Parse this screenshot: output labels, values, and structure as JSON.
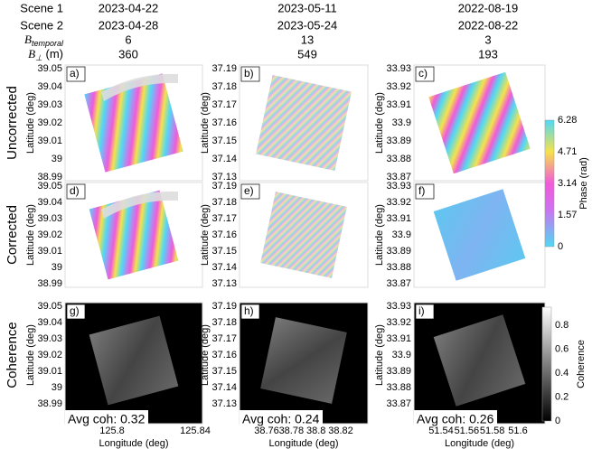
{
  "header": {
    "rows": [
      {
        "label": "Scene 1",
        "values": [
          "2023-04-22",
          "2023-05-11",
          "2022-08-19"
        ]
      },
      {
        "label": "Scene 2",
        "values": [
          "2023-04-28",
          "2023-05-24",
          "2022-08-22"
        ]
      },
      {
        "label": "B",
        "sub": "temporal",
        "values": [
          6,
          13,
          3
        ]
      },
      {
        "label": "B",
        "sub": "⊥",
        "suffix": " (m)",
        "values": [
          360,
          549,
          193
        ]
      }
    ]
  },
  "row_labels": [
    "Uncorrected",
    "Corrected",
    "Coherence"
  ],
  "y_label": "Latitude (deg)",
  "x_label": "Longitude (deg)",
  "columns": [
    {
      "yticks": [
        39.05,
        39.04,
        39.03,
        39.02,
        39.01,
        39,
        38.99
      ],
      "xticks": [
        125.8,
        125.84
      ],
      "panels": [
        "a)",
        "d)",
        "g)"
      ],
      "avg_coh": "Avg coh: 0.32"
    },
    {
      "yticks": [
        37.19,
        37.18,
        37.17,
        37.16,
        37.15,
        37.14,
        37.13
      ],
      "xticks": [
        38.76,
        38.78,
        38.8,
        38.82
      ],
      "panels": [
        "b)",
        "e)",
        "h)"
      ],
      "avg_coh": "Avg coh: 0.24"
    },
    {
      "yticks": [
        33.93,
        33.92,
        33.91,
        33.9,
        33.89,
        33.88,
        33.87
      ],
      "xticks": [
        51.54,
        51.56,
        51.58,
        51.6
      ],
      "panels": [
        "c)",
        "f)",
        "i)"
      ],
      "avg_coh": "Avg coh: 0.26"
    }
  ],
  "phase_colorbar": {
    "label": "Phase (rad)",
    "range": [
      0,
      6.28
    ],
    "ticks": [
      0,
      1.57,
      3.14,
      4.71,
      6.28
    ]
  },
  "coherence_colorbar": {
    "label": "Coherence",
    "range": [
      0,
      0.95
    ],
    "ticks": [
      0,
      0.2,
      0.4,
      0.6,
      0.8
    ]
  }
}
